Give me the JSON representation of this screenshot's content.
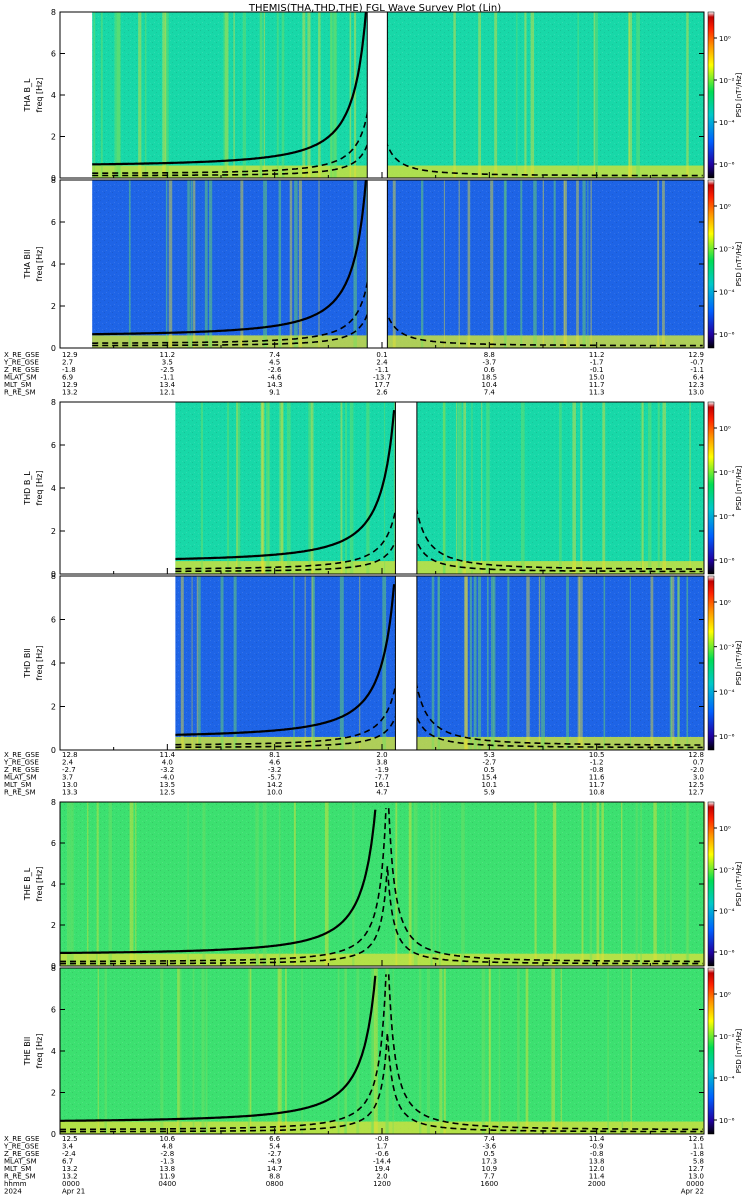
{
  "title": "THEMIS(THA,THD,THE) FGL Wave Survey Plot (Lin)",
  "colorbar": {
    "label": "PSD [nT²/Hz]",
    "ticks": [
      "10⁰",
      "10⁻²",
      "10⁻⁴",
      "10⁻⁶"
    ],
    "colors": [
      "#ffffff",
      "#c00000",
      "#ff2000",
      "#ff9000",
      "#ffff00",
      "#00dd55",
      "#00c8c8",
      "#0080ff",
      "#2000a0",
      "#000000"
    ]
  },
  "chart_data": [
    {
      "type": "heatmap",
      "probe": "THA",
      "component": "B_L",
      "ylabel": "THA B_L",
      "yunit": "freq [Hz]",
      "ylim": [
        0,
        8
      ],
      "yticks": [
        "0",
        "2",
        "4",
        "6",
        "8"
      ],
      "xlim": [
        "0000",
        "2400"
      ],
      "data_coverage_hours": [
        [
          1.2,
          24
        ]
      ],
      "gaps_hours": [
        [
          11.45,
          12.2
        ]
      ],
      "background": "#18d8a8"
    },
    {
      "type": "heatmap",
      "probe": "THA",
      "component": "B_ll",
      "ylabel": "THA Bll",
      "yunit": "freq [Hz]",
      "ylim": [
        0,
        8
      ],
      "yticks": [
        "0",
        "2",
        "4",
        "6",
        "8"
      ],
      "xlim": [
        "0000",
        "2400"
      ],
      "data_coverage_hours": [
        [
          1.2,
          24
        ]
      ],
      "gaps_hours": [
        [
          11.45,
          12.2
        ]
      ],
      "background": "#1e64e6"
    },
    {
      "type": "heatmap",
      "probe": "THD",
      "component": "B_L",
      "ylabel": "THD B_L",
      "yunit": "freq [Hz]",
      "ylim": [
        0,
        8
      ],
      "yticks": [
        "0",
        "2",
        "4",
        "6",
        "8"
      ],
      "xlim": [
        "0000",
        "2400"
      ],
      "data_coverage_hours": [
        [
          4.3,
          24
        ]
      ],
      "gaps_hours": [
        [
          12.5,
          13.3
        ]
      ],
      "background": "#18d8a8"
    },
    {
      "type": "heatmap",
      "probe": "THD",
      "component": "B_ll",
      "ylabel": "THD Bll",
      "yunit": "freq [Hz]",
      "ylim": [
        0,
        8
      ],
      "yticks": [
        "0",
        "2",
        "4",
        "6",
        "8"
      ],
      "xlim": [
        "0000",
        "2400"
      ],
      "data_coverage_hours": [
        [
          4.3,
          24
        ]
      ],
      "gaps_hours": [
        [
          12.5,
          13.3
        ]
      ],
      "background": "#1e64e6"
    },
    {
      "type": "heatmap",
      "probe": "THE",
      "component": "B_L",
      "ylabel": "THE B_L",
      "yunit": "freq [Hz]",
      "ylim": [
        0,
        8
      ],
      "yticks": [
        "0",
        "2",
        "4",
        "6",
        "8"
      ],
      "xlim": [
        "0000",
        "2400"
      ],
      "data_coverage_hours": [
        [
          0,
          24
        ]
      ],
      "gaps_hours": [],
      "background": "#3ce070"
    },
    {
      "type": "heatmap",
      "probe": "THE",
      "component": "B_ll",
      "ylabel": "THE Bll",
      "yunit": "freq [Hz]",
      "ylim": [
        0,
        8
      ],
      "yticks": [
        "0",
        "2",
        "4",
        "6",
        "8"
      ],
      "xlim": [
        "0000",
        "2400"
      ],
      "data_coverage_hours": [
        [
          0,
          24
        ]
      ],
      "gaps_hours": [],
      "background": "#3ce070"
    }
  ],
  "ephemeris": [
    {
      "probe": "THA",
      "rows": [
        {
          "label": "X_RE_GSE",
          "values": [
            "12.9",
            "11.2",
            "7.4",
            "0.1",
            "8.8",
            "11.2",
            "12.9"
          ]
        },
        {
          "label": "Y_RE_GSE",
          "values": [
            "2.7",
            "3.5",
            "4.5",
            "2.4",
            "-3.7",
            "-1.7",
            "-0.7"
          ]
        },
        {
          "label": "Z_RE_GSE",
          "values": [
            "-1.8",
            "-2.5",
            "-2.6",
            "-1.1",
            "0.6",
            "-0.1",
            "-1.1"
          ]
        },
        {
          "label": "MLAT_SM",
          "values": [
            "6.9",
            "-1.1",
            "-4.6",
            "-13.7",
            "18.5",
            "15.0",
            "6.4"
          ]
        },
        {
          "label": "MLT_SM",
          "values": [
            "12.9",
            "13.4",
            "14.3",
            "17.7",
            "10.4",
            "11.7",
            "12.3"
          ]
        },
        {
          "label": "R_RE_SM",
          "values": [
            "13.2",
            "12.1",
            "9.1",
            "2.6",
            "7.4",
            "11.3",
            "13.0"
          ]
        }
      ]
    },
    {
      "probe": "THD",
      "rows": [
        {
          "label": "X_RE_GSE",
          "values": [
            "12.8",
            "11.4",
            "8.1",
            "2.0",
            "5.3",
            "10.5",
            "12.8"
          ]
        },
        {
          "label": "Y_RE_GSE",
          "values": [
            "2.4",
            "4.0",
            "4.6",
            "3.8",
            "-2.7",
            "-1.2",
            "0.7"
          ]
        },
        {
          "label": "Z_RE_GSE",
          "values": [
            "-2.7",
            "-3.2",
            "-3.2",
            "-1.9",
            "0.5",
            "-0.8",
            "-2.0"
          ]
        },
        {
          "label": "MLAT_SM",
          "values": [
            "3.7",
            "-4.0",
            "-5.7",
            "-7.7",
            "15.4",
            "11.6",
            "3.0"
          ]
        },
        {
          "label": "MLT_SM",
          "values": [
            "13.0",
            "13.5",
            "14.2",
            "16.1",
            "10.1",
            "11.7",
            "12.5"
          ]
        },
        {
          "label": "R_RE_SM",
          "values": [
            "13.3",
            "12.5",
            "10.0",
            "4.7",
            "5.9",
            "10.8",
            "12.7"
          ]
        }
      ]
    },
    {
      "probe": "THE",
      "rows": [
        {
          "label": "X_RE_GSE",
          "values": [
            "12.5",
            "10.6",
            "6.6",
            "-0.8",
            "7.4",
            "11.4",
            "12.6"
          ]
        },
        {
          "label": "Y_RE_GSE",
          "values": [
            "3.4",
            "4.8",
            "5.4",
            "1.7",
            "-3.6",
            "-0.9",
            "1.1"
          ]
        },
        {
          "label": "Z_RE_GSE",
          "values": [
            "-2.4",
            "-2.8",
            "-2.7",
            "-0.6",
            "0.5",
            "-0.8",
            "-1.8"
          ]
        },
        {
          "label": "MLAT_SM",
          "values": [
            "6.7",
            "-1.3",
            "-4.9",
            "-14.4",
            "17.3",
            "13.8",
            "5.8"
          ]
        },
        {
          "label": "MLT_SM",
          "values": [
            "13.2",
            "13.8",
            "14.7",
            "19.4",
            "10.9",
            "12.0",
            "12.7"
          ]
        },
        {
          "label": "R_RE_SM",
          "values": [
            "13.2",
            "11.9",
            "8.8",
            "2.0",
            "7.7",
            "11.4",
            "13.0"
          ]
        },
        {
          "label": "hhmm",
          "values": [
            "0000",
            "0400",
            "0800",
            "1200",
            "1600",
            "2000",
            "0000"
          ]
        },
        {
          "label": "2024",
          "values": [
            "Apr 21",
            "",
            "",
            "",
            "",
            "",
            "Apr 22"
          ]
        }
      ]
    }
  ]
}
